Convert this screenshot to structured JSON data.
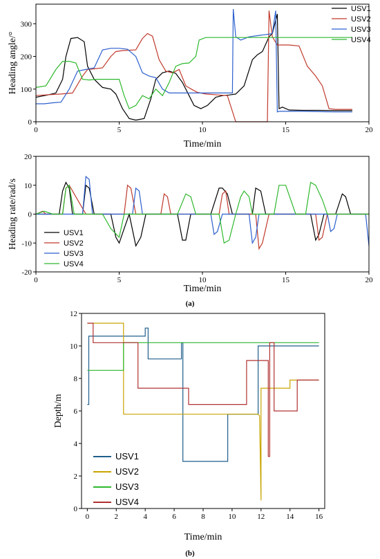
{
  "panel_labels": [
    "(a)",
    "(b)"
  ],
  "chart_data": [
    {
      "type": "line",
      "xlabel": "Time/min",
      "ylabel": "Heading angle/°",
      "xlim": [
        0,
        20
      ],
      "ylim": [
        0,
        360
      ],
      "xticks": [
        0,
        5,
        10,
        15,
        20
      ],
      "yticks": [
        0,
        100,
        200,
        300
      ],
      "legend": "top-right",
      "series": [
        {
          "name": "USV1",
          "color": "#000000",
          "x": [
            0,
            0.3,
            0.7,
            1.2,
            1.6,
            1.8,
            2.1,
            2.5,
            2.9,
            3.1,
            3.5,
            4.0,
            4.5,
            4.8,
            5.2,
            5.6,
            6.0,
            6.5,
            6.9,
            7.2,
            7.6,
            8.0,
            8.4,
            8.8,
            9.2,
            9.5,
            9.9,
            10.3,
            10.8,
            11.2,
            11.6,
            12.0,
            12.5,
            13.0,
            13.3,
            13.6,
            14.0,
            14.2,
            14.5,
            14.6,
            14.8,
            15.2,
            16,
            17,
            18,
            19
          ],
          "y": [
            75,
            78,
            82,
            88,
            130,
            200,
            255,
            258,
            245,
            170,
            130,
            105,
            100,
            85,
            40,
            10,
            5,
            10,
            70,
            130,
            150,
            155,
            148,
            120,
            80,
            50,
            40,
            50,
            75,
            80,
            82,
            85,
            110,
            190,
            205,
            215,
            260,
            270,
            330,
            40,
            45,
            36,
            35,
            35,
            34,
            34
          ]
        },
        {
          "name": "USV2",
          "color": "#c0392b",
          "x": [
            0,
            0.5,
            1.5,
            2.2,
            2.8,
            3.1,
            3.5,
            4.0,
            4.5,
            4.8,
            5.2,
            6.0,
            6.4,
            6.7,
            7.0,
            7.4,
            7.8,
            8.2,
            8.6,
            9.0,
            9.4,
            9.7,
            10.2,
            11.0,
            11.5,
            12.0,
            12.5,
            13.0,
            13.5,
            13.9,
            14.0,
            14.2,
            14.5,
            14.8,
            15.2,
            15.8,
            16.3,
            16.8,
            17.2,
            17.6,
            18,
            19
          ],
          "y": [
            80,
            82,
            85,
            88,
            140,
            160,
            162,
            165,
            200,
            215,
            218,
            220,
            255,
            270,
            262,
            190,
            155,
            150,
            160,
            110,
            98,
            90,
            85,
            82,
            80,
            0,
            0,
            0,
            0,
            0,
            340,
            260,
            235,
            235,
            235,
            232,
            170,
            140,
            110,
            40,
            38,
            38
          ]
        },
        {
          "name": "USV3",
          "color": "#2b5fce",
          "x": [
            0,
            0.5,
            1.0,
            1.5,
            2.0,
            2.5,
            3.0,
            3.5,
            4.0,
            4.5,
            5.0,
            5.5,
            6.0,
            6.4,
            6.8,
            7.2,
            7.6,
            8.0,
            8.4,
            9.0,
            9.5,
            10.0,
            10.5,
            11.0,
            11.8,
            11.85,
            12.0,
            12.3,
            12.8,
            13.5,
            14.0,
            14.2,
            14.4,
            14.5,
            14.6,
            15,
            16,
            17,
            18,
            19
          ],
          "y": [
            55,
            55,
            58,
            60,
            100,
            155,
            160,
            165,
            220,
            225,
            225,
            222,
            200,
            150,
            140,
            135,
            100,
            88,
            88,
            88,
            88,
            88,
            88,
            88,
            88,
            345,
            260,
            250,
            260,
            265,
            268,
            270,
            340,
            30,
            32,
            32,
            32,
            31,
            30,
            30
          ]
        },
        {
          "name": "USV4",
          "color": "#2db82d",
          "x": [
            0,
            0.6,
            1.2,
            1.6,
            2.0,
            2.4,
            2.8,
            3.2,
            3.6,
            4.0,
            5.0,
            5.3,
            5.6,
            6.0,
            6.4,
            6.8,
            7.2,
            7.6,
            8.0,
            8.4,
            8.8,
            9.2,
            9.6,
            9.8,
            10.2,
            10.6,
            11,
            12,
            13,
            14,
            15,
            16,
            17,
            18,
            19
          ],
          "y": [
            105,
            110,
            160,
            185,
            185,
            180,
            130,
            128,
            130,
            130,
            130,
            80,
            40,
            50,
            80,
            70,
            100,
            80,
            120,
            170,
            178,
            180,
            200,
            250,
            258,
            258,
            258,
            258,
            258,
            258,
            258,
            258,
            258,
            258,
            258
          ]
        }
      ]
    },
    {
      "type": "line",
      "xlabel": "Time/min",
      "ylabel": "Heading rate/rad/s",
      "xlim": [
        0,
        20
      ],
      "ylim": [
        -20,
        20
      ],
      "xticks": [
        0,
        5,
        10,
        15,
        20
      ],
      "yticks": [
        -20,
        -10,
        0,
        10,
        20
      ],
      "legend": "lower-left",
      "series": [
        {
          "name": "USV1",
          "color": "#000000",
          "x": [
            0,
            1.4,
            1.6,
            1.8,
            2.0,
            2.2,
            2.8,
            3.0,
            3.2,
            3.5,
            4.5,
            4.8,
            5.0,
            5.3,
            5.6,
            6.0,
            6.3,
            6.6,
            7.0,
            8.5,
            8.8,
            9.0,
            9.3,
            9.6,
            10.5,
            11.0,
            11.2,
            11.5,
            11.8,
            12.0,
            12.5,
            13.0,
            13.2,
            13.5,
            13.8,
            14.0,
            16.5,
            16.8,
            17.0,
            17.3,
            17.6,
            18.0,
            18.4,
            18.6,
            18.9,
            20
          ],
          "y": [
            0,
            0,
            8,
            11,
            9,
            0,
            0,
            10,
            9,
            0,
            0,
            -8,
            -10,
            -5,
            0,
            -11,
            -8,
            0,
            0,
            0,
            -9,
            -9,
            0,
            0,
            0,
            9,
            9,
            7,
            0,
            0,
            0,
            0,
            9,
            8,
            0,
            0,
            0,
            -9,
            -7,
            0,
            0,
            0,
            7,
            6,
            0,
            0
          ]
        },
        {
          "name": "USV2",
          "color": "#c0392b",
          "x": [
            0,
            0.4,
            0.6,
            1.0,
            1.6,
            1.8,
            2.0,
            3.0,
            5.3,
            5.5,
            5.7,
            6.0,
            6.2,
            7.5,
            7.7,
            7.9,
            8.1,
            10.0,
            11.0,
            11.2,
            11.4,
            11.6,
            12.0,
            13.2,
            13.4,
            13.6,
            14.0,
            14.5,
            16.8,
            17.0,
            17.2,
            17.5,
            18,
            20
          ],
          "y": [
            0,
            1,
            0,
            0,
            0,
            9,
            10,
            0,
            0,
            10,
            9,
            0,
            0,
            0,
            7,
            6,
            0,
            0,
            0,
            7,
            8,
            0,
            0,
            0,
            -12,
            -10,
            0,
            0,
            0,
            -9,
            -8,
            0,
            0,
            0
          ]
        },
        {
          "name": "USV3",
          "color": "#2b5fce",
          "x": [
            0,
            2.8,
            3.0,
            3.2,
            3.4,
            3.6,
            5.8,
            6.0,
            6.2,
            6.4,
            10.5,
            10.7,
            10.9,
            11.2,
            12.8,
            13.0,
            13.2,
            13.4,
            17.5,
            17.7,
            17.9,
            18.1,
            19.8,
            20
          ],
          "y": [
            0,
            0,
            13,
            12,
            0,
            0,
            0,
            9,
            8,
            0,
            0,
            -7,
            -6,
            0,
            0,
            -10,
            -8,
            0,
            0,
            -6,
            -5,
            0,
            0,
            -11
          ]
        },
        {
          "name": "USV4",
          "color": "#2db82d",
          "x": [
            0,
            0.5,
            1.0,
            1.6,
            1.8,
            2.0,
            2.3,
            4.0,
            4.5,
            5.0,
            5.3,
            8.5,
            9.0,
            9.3,
            9.6,
            11.0,
            11.3,
            11.6,
            12.0,
            12.3,
            12.5,
            12.8,
            13.0,
            14.3,
            14.6,
            15.0,
            15.3,
            15.6,
            16.2,
            16.5,
            16.8,
            17.2,
            17.5,
            20
          ],
          "y": [
            0,
            1,
            0,
            0,
            9,
            10,
            0,
            0,
            -5,
            -8,
            0,
            0,
            7,
            6,
            0,
            0,
            -10,
            -9,
            0,
            6,
            8,
            6,
            0,
            0,
            10,
            10,
            5,
            0,
            0,
            11,
            10,
            5,
            0,
            0
          ]
        }
      ]
    },
    {
      "type": "line",
      "xlabel": "Time/min",
      "ylabel": "Depth/m",
      "xlim": [
        -0.4,
        16.4
      ],
      "ylim": [
        0,
        12
      ],
      "xticks": [
        0,
        2,
        4,
        6,
        8,
        10,
        12,
        14,
        16
      ],
      "yticks": [
        0,
        2,
        4,
        6,
        8,
        10,
        12
      ],
      "legend": "lower-left",
      "series": [
        {
          "name": "USV1",
          "color": "#1f5e8c",
          "x": [
            0,
            0.1,
            0.1,
            4.0,
            4.0,
            4.2,
            4.2,
            6.5,
            6.5,
            6.6,
            6.6,
            9.7,
            9.7,
            11.8,
            11.8,
            16
          ],
          "y": [
            6.4,
            6.4,
            10.6,
            10.6,
            11.1,
            11.1,
            9.2,
            9.2,
            10.2,
            10.2,
            2.9,
            2.9,
            5.8,
            5.8,
            10.0,
            10.0
          ]
        },
        {
          "name": "USV2",
          "color": "#c8a400",
          "x": [
            0,
            2.5,
            2.5,
            11.8,
            11.9,
            12.0,
            12.0,
            14.0,
            14.0,
            16
          ],
          "y": [
            11.4,
            11.4,
            5.8,
            5.8,
            5.7,
            0.5,
            7.4,
            7.4,
            7.9,
            7.9
          ]
        },
        {
          "name": "USV3",
          "color": "#2db82d",
          "x": [
            0,
            2.5,
            2.5,
            16
          ],
          "y": [
            8.5,
            8.5,
            10.2,
            10.2
          ]
        },
        {
          "name": "USV4",
          "color": "#b03030",
          "x": [
            0,
            0.4,
            0.4,
            3.5,
            3.5,
            7.0,
            7.0,
            11.0,
            11.0,
            12.5,
            12.5,
            12.6,
            12.6,
            12.9,
            12.9,
            13.0,
            13.0,
            14.5,
            14.5,
            16
          ],
          "y": [
            11.4,
            11.4,
            10.2,
            10.2,
            7.4,
            7.4,
            6.4,
            6.4,
            9.1,
            9.1,
            3.2,
            3.2,
            10.2,
            10.2,
            6.0,
            6.0,
            6.0,
            6.0,
            7.9,
            7.9
          ]
        }
      ]
    }
  ]
}
